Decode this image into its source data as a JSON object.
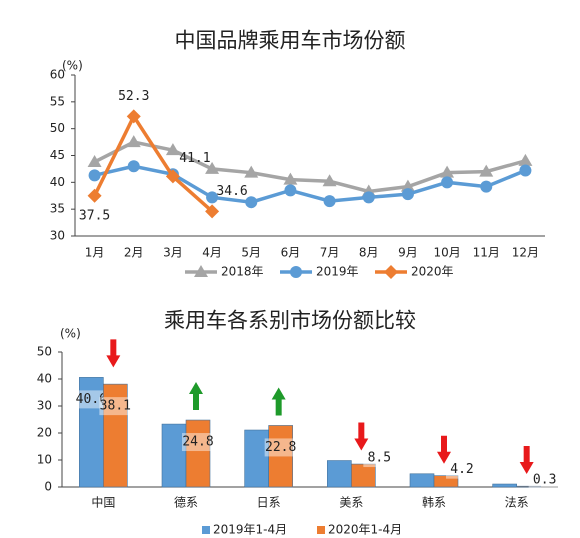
{
  "chart_data": [
    {
      "type": "line",
      "title": "中国品牌乘用车市场份额",
      "y_label": "(%)",
      "categories": [
        "1月",
        "2月",
        "3月",
        "4月",
        "5月",
        "6月",
        "7月",
        "8月",
        "9月",
        "10月",
        "11月",
        "12月"
      ],
      "series": [
        {
          "name": "2018年",
          "color": "#a5a5a5",
          "marker": "triangle",
          "values": [
            43.8,
            47.5,
            46,
            42.5,
            41.8,
            40.5,
            40.2,
            38.3,
            39.2,
            41.8,
            42,
            44
          ]
        },
        {
          "name": "2019年",
          "color": "#5b9bd5",
          "marker": "circle",
          "values": [
            41.3,
            43,
            41.5,
            37.2,
            36.3,
            38.5,
            36.5,
            37.2,
            37.8,
            40,
            39.2,
            42.2
          ]
        },
        {
          "name": "2020年",
          "color": "#ed7d31",
          "marker": "diamond",
          "values": [
            37.5,
            52.3,
            41.1,
            34.6,
            null,
            null,
            null,
            null,
            null,
            null,
            null,
            null
          ],
          "value_labels": [
            "37.5",
            "52.3",
            "41.1",
            "34.6",
            null,
            null,
            null,
            null,
            null,
            null,
            null,
            null
          ]
        }
      ],
      "ylim": [
        30,
        60
      ],
      "yticks": [
        30,
        35,
        40,
        45,
        50,
        55,
        60
      ],
      "grid": false
    },
    {
      "type": "bar",
      "title": "乘用车各系别市场份额比较",
      "y_label": "(%)",
      "categories": [
        "中国",
        "德系",
        "日系",
        "美系",
        "韩系",
        "法系"
      ],
      "series": [
        {
          "name": "2019年1-4月",
          "color": "#5b9bd5",
          "values": [
            40.6,
            23.3,
            21.1,
            9.8,
            4.9,
            1.1
          ],
          "value_labels": [
            "40.6",
            null,
            null,
            null,
            null,
            null
          ]
        },
        {
          "name": "2020年1-4月",
          "color": "#ed7d31",
          "values": [
            38.1,
            24.8,
            22.8,
            8.5,
            4.2,
            0.3
          ],
          "value_labels": [
            "38.1",
            "24.8",
            "22.8",
            "8.5",
            "4.2",
            "0.3"
          ]
        }
      ],
      "ylim": [
        0,
        50
      ],
      "yticks": [
        0,
        10,
        20,
        30,
        40,
        50
      ],
      "grid": false,
      "up_color": "#1e9a2a",
      "down_color": "#e8191b"
    }
  ]
}
